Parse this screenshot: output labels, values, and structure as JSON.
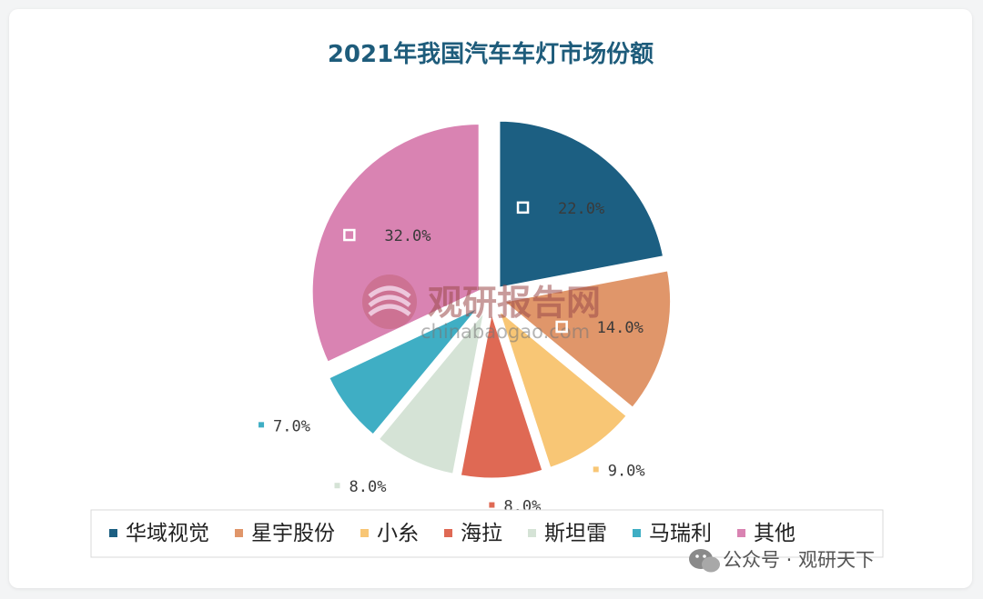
{
  "chart_data": {
    "type": "pie",
    "title": "2021年我国汽车车灯市场份额",
    "categories": [
      "华域视觉",
      "星宇股份",
      "小糸",
      "海拉",
      "斯坦雷",
      "马瑞利",
      "其他"
    ],
    "values": [
      22.0,
      14.0,
      9.0,
      8.0,
      8.0,
      7.0,
      32.0
    ],
    "value_labels": [
      "22.0%",
      "14.0%",
      "9.0%",
      "8.0%",
      "8.0%",
      "7.0%",
      "32.0%"
    ],
    "colors": [
      "#1c5f82",
      "#e0966a",
      "#f8c675",
      "#df6954",
      "#d5e3d6",
      "#3faec4",
      "#d983b2"
    ],
    "exploded": true,
    "legend_position": "bottom",
    "title_color": "#1e5c7b"
  },
  "watermark": {
    "name": "观研报告网",
    "url": "chinabaogao.com"
  },
  "account": {
    "text": "公众号 · 观研天下",
    "icon": "wechat-icon"
  }
}
